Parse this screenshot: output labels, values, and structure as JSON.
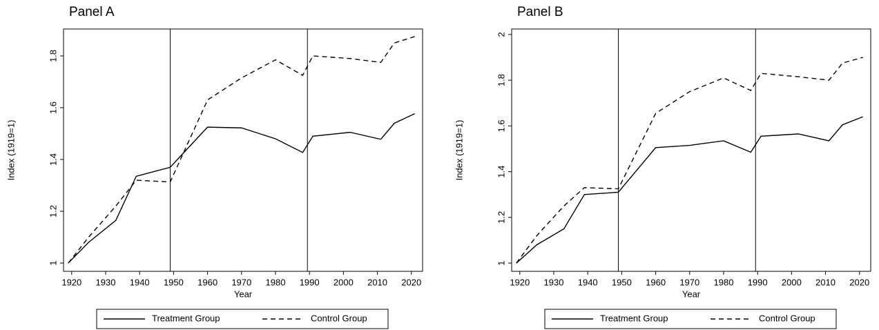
{
  "chart_data": [
    {
      "type": "line",
      "title": "Panel A",
      "x_label": "Year",
      "y_label": "Index (1919=1)",
      "x": [
        1919,
        1925,
        1933,
        1939,
        1949,
        1960,
        1970,
        1980,
        1988,
        1991,
        2002,
        2011,
        2015,
        2021
      ],
      "series": [
        {
          "name": "Treatment Group",
          "color": "#000000",
          "line_style": "solid",
          "values": [
            1.0,
            1.08,
            1.165,
            1.335,
            1.37,
            1.525,
            1.522,
            1.48,
            1.427,
            1.49,
            1.505,
            1.478,
            1.54,
            1.577
          ]
        },
        {
          "name": "Control Group",
          "color": "#000000",
          "line_style": "dashed",
          "values": [
            1.0,
            1.1,
            1.22,
            1.32,
            1.313,
            1.63,
            1.715,
            1.785,
            1.725,
            1.8,
            1.79,
            1.775,
            1.85,
            1.875
          ]
        }
      ],
      "vlines": [
        1949,
        1989.4
      ],
      "xlim": [
        1917.6,
        2023.3
      ],
      "xticks": [
        1920,
        1930,
        1940,
        1950,
        1960,
        1970,
        1980,
        1990,
        2000,
        2010,
        2020
      ],
      "ylim": [
        0.968,
        1.904
      ],
      "yticks": [
        1,
        1.2,
        1.4,
        1.6,
        1.8
      ],
      "legend": "bottom"
    },
    {
      "type": "line",
      "title": "Panel B",
      "x_label": "Year",
      "y_label": "Index (1919=1)",
      "x": [
        1919,
        1925,
        1933,
        1939,
        1949,
        1960,
        1970,
        1980,
        1988,
        1991,
        2002,
        2011,
        2015,
        2021
      ],
      "series": [
        {
          "name": "Treatment Group",
          "color": "#000000",
          "line_style": "solid",
          "values": [
            1.0,
            1.08,
            1.15,
            1.3,
            1.31,
            1.505,
            1.515,
            1.535,
            1.485,
            1.555,
            1.565,
            1.535,
            1.605,
            1.64
          ]
        },
        {
          "name": "Control Group",
          "color": "#000000",
          "line_style": "dashed",
          "values": [
            1.0,
            1.12,
            1.25,
            1.33,
            1.325,
            1.655,
            1.75,
            1.81,
            1.755,
            1.83,
            1.815,
            1.8,
            1.875,
            1.9
          ]
        }
      ],
      "vlines": [
        1949,
        1989.4
      ],
      "xlim": [
        1917.6,
        2023.3
      ],
      "xticks": [
        1920,
        1930,
        1940,
        1950,
        1960,
        1970,
        1980,
        1990,
        2000,
        2010,
        2020
      ],
      "ylim": [
        0.964,
        2.024
      ],
      "yticks": [
        1,
        1.2,
        1.4,
        1.6,
        1.8,
        2
      ],
      "legend": "bottom"
    }
  ]
}
